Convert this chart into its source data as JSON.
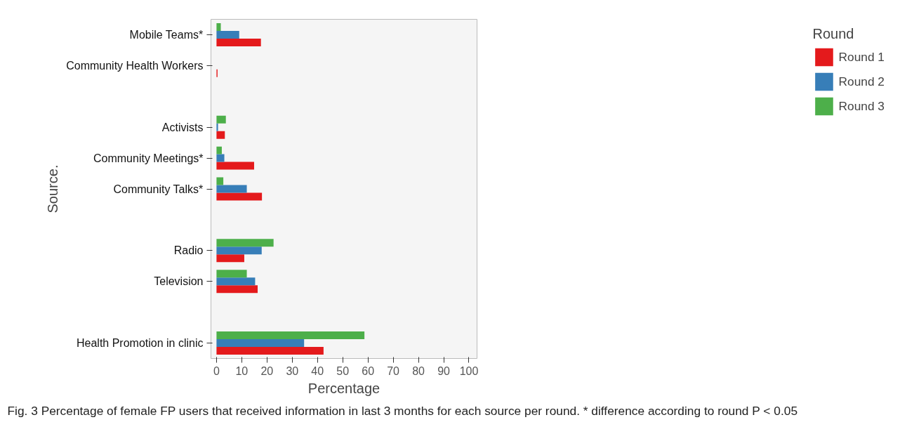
{
  "chart_data": {
    "type": "bar",
    "orientation": "horizontal",
    "xlabel": "Percentage",
    "ylabel": "Source.",
    "legend_title": "Round",
    "legend": "right",
    "categories": [
      "Mobile Teams*",
      "Community Health Workers",
      null,
      "Activists",
      "Community Meetings*",
      "Community Talks*",
      null,
      "Radio",
      "Television",
      null,
      "Health Promotion in clinic"
    ],
    "series": [
      {
        "name": "Round 1",
        "color": "#e41a1c",
        "values": [
          17.6,
          0.4,
          null,
          3.3,
          14.9,
          18.0,
          null,
          11.0,
          16.3,
          null,
          42.4
        ]
      },
      {
        "name": "Round 2",
        "color": "#377eb8",
        "values": [
          9.0,
          0,
          null,
          0.6,
          3.1,
          12.0,
          null,
          17.9,
          15.3,
          null,
          34.7
        ]
      },
      {
        "name": "Round 3",
        "color": "#4daf4a",
        "values": [
          1.7,
          0,
          null,
          3.7,
          2.1,
          2.7,
          null,
          22.6,
          12.0,
          null,
          58.6
        ]
      }
    ],
    "xlim": [
      -2.2,
      103.2
    ],
    "xticks": [
      0,
      10,
      20,
      30,
      40,
      50,
      60,
      70,
      80,
      90,
      100
    ],
    "grid": false,
    "annotations": [
      "Fig. 3 Percentage of female FP users that received information in last 3 months for each source per round. * difference according to round P < 0.05"
    ]
  }
}
